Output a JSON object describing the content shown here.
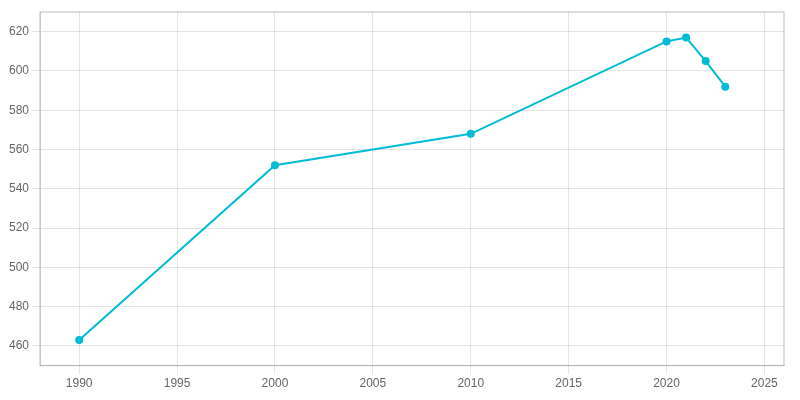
{
  "chart_data": {
    "type": "line",
    "x": [
      1990,
      2000,
      2010,
      2020,
      2021,
      2022,
      2023
    ],
    "values": [
      463,
      552,
      568,
      615,
      617,
      605,
      592
    ],
    "color": "#00bcd4",
    "marker": "circle",
    "xlim": [
      1988,
      2026
    ],
    "ylim": [
      450,
      630
    ],
    "xticks": [
      1990,
      1995,
      2000,
      2005,
      2010,
      2015,
      2020,
      2025
    ],
    "yticks": [
      460,
      480,
      500,
      520,
      540,
      560,
      580,
      600,
      620
    ],
    "grid": true
  }
}
